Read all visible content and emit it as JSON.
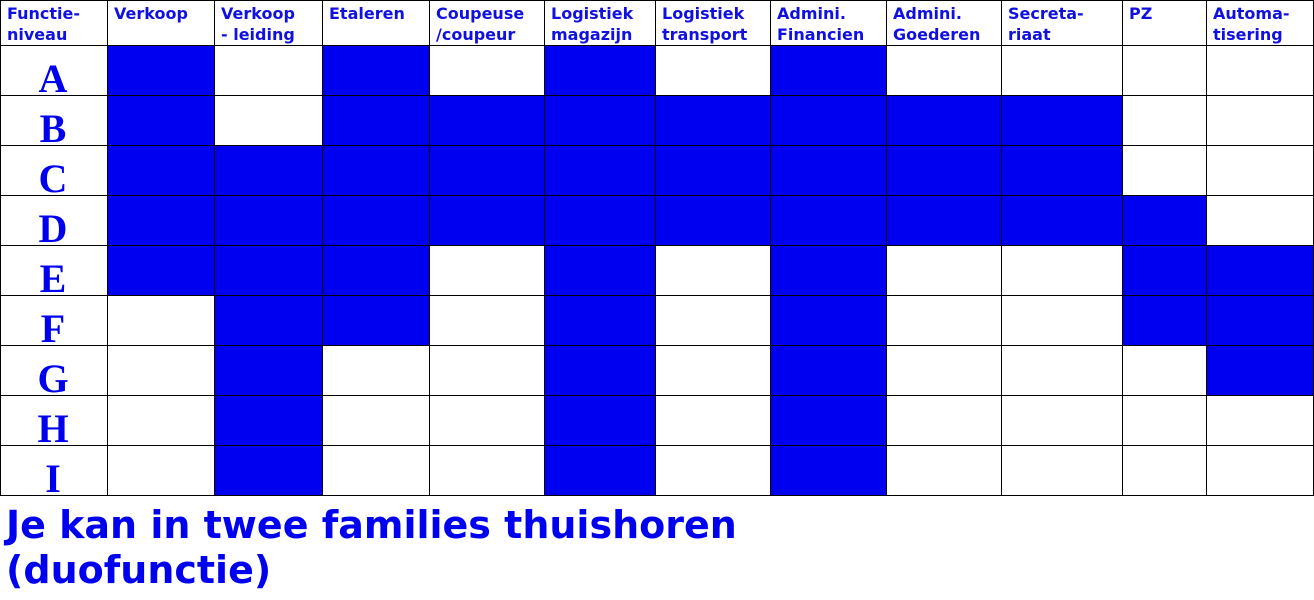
{
  "table": {
    "header": [
      [
        "Functie-",
        "niveau"
      ],
      [
        "Verkoop"
      ],
      [
        "Verkoop",
        "- leiding"
      ],
      [
        "Etaleren"
      ],
      [
        "Coupeuse",
        "/coupeur"
      ],
      [
        "Logistiek",
        "magazijn"
      ],
      [
        "Logistiek",
        "transport"
      ],
      [
        "Admini.",
        "Financien"
      ],
      [
        "Admini.",
        "Goederen"
      ],
      [
        "Secreta-",
        "riaat"
      ],
      [
        "PZ"
      ],
      [
        "Automa-",
        "tisering"
      ]
    ],
    "rows": [
      "A",
      "B",
      "C",
      "D",
      "E",
      "F",
      "G",
      "H",
      "I"
    ],
    "fill_color": "#0000f0",
    "filled": [
      [
        1,
        0,
        1,
        0,
        1,
        0,
        1,
        0,
        0,
        0,
        0
      ],
      [
        1,
        0,
        1,
        1,
        1,
        1,
        1,
        1,
        1,
        0,
        0
      ],
      [
        1,
        1,
        1,
        1,
        1,
        1,
        1,
        1,
        1,
        0,
        0
      ],
      [
        1,
        1,
        1,
        1,
        1,
        1,
        1,
        1,
        1,
        1,
        0
      ],
      [
        1,
        1,
        1,
        0,
        1,
        0,
        1,
        0,
        0,
        1,
        1
      ],
      [
        0,
        1,
        1,
        0,
        1,
        0,
        1,
        0,
        0,
        1,
        1
      ],
      [
        0,
        1,
        0,
        0,
        1,
        0,
        1,
        0,
        0,
        0,
        1
      ],
      [
        0,
        1,
        0,
        0,
        1,
        0,
        1,
        0,
        0,
        0,
        0
      ],
      [
        0,
        1,
        0,
        0,
        1,
        0,
        1,
        0,
        0,
        0,
        0
      ]
    ]
  },
  "caption": [
    "Je kan in twee families thuishoren",
    "(duofunctie)"
  ]
}
